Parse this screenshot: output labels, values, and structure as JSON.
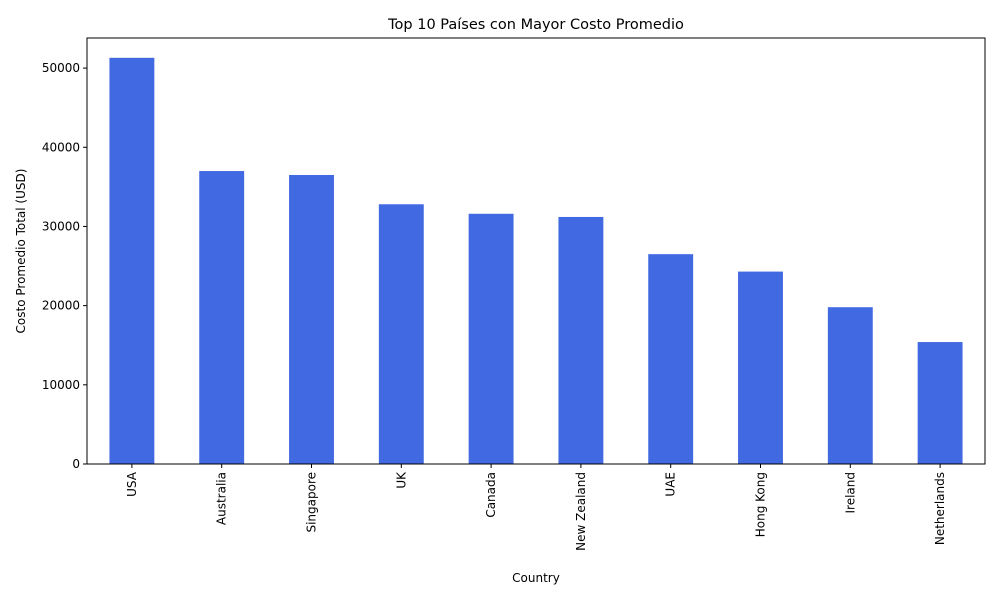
{
  "chart_data": {
    "type": "bar",
    "title": "Top 10 Países con Mayor Costo Promedio",
    "xlabel": "Country",
    "ylabel": "Costo Promedio Total (USD)",
    "categories": [
      "USA",
      "Australia",
      "Singapore",
      "UK",
      "Canada",
      "New Zealand",
      "UAE",
      "Hong Kong",
      "Ireland",
      "Netherlands"
    ],
    "values": [
      51300,
      37000,
      36500,
      32800,
      31600,
      31200,
      26500,
      24300,
      19800,
      15400
    ],
    "ylim": [
      0,
      53800
    ],
    "yticks": [
      0,
      10000,
      20000,
      30000,
      40000,
      50000
    ],
    "bar_color": "#4169e1",
    "grid": false,
    "legend": "none"
  }
}
